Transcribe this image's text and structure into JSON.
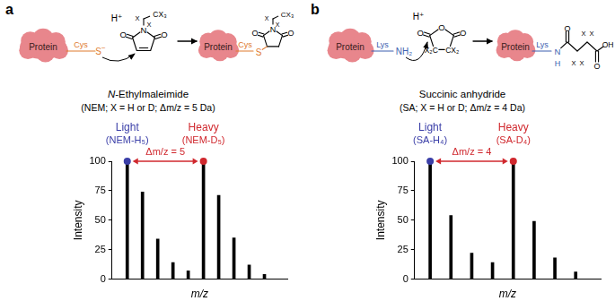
{
  "chart_data": [
    {
      "type": "bar",
      "xlabel": "m/z",
      "ylabel": "Intensity",
      "color": "#000000",
      "xlim": [
        -1,
        10.5
      ],
      "ylim": [
        0,
        100
      ],
      "yticks": [
        0,
        25,
        50,
        75,
        100
      ],
      "grid": false,
      "tick_labels": "y",
      "series": [
        {
          "name": "Light",
          "label": "(NEM-H₅)",
          "color": "#3b3fa8",
          "marker": "circle",
          "x": [
            0,
            1,
            2,
            3,
            4
          ],
          "values": [
            100,
            74,
            34,
            14,
            7
          ]
        },
        {
          "name": "Heavy",
          "label": "(NEM-D₅)",
          "color": "#d0282e",
          "marker": "circle",
          "x": [
            5,
            6,
            7,
            8,
            9
          ],
          "values": [
            100,
            71,
            35,
            12,
            4
          ]
        }
      ],
      "annotations": [
        {
          "text": "Δm/z = 5",
          "from": 0,
          "to": 5,
          "color": "#d0282e"
        }
      ]
    },
    {
      "type": "bar",
      "xlabel": "m/z",
      "ylabel": "Intensity",
      "color": "#000000",
      "xlim": [
        -0.75,
        8.2
      ],
      "ylim": [
        0,
        100
      ],
      "yticks": [
        0,
        25,
        50,
        75,
        100
      ],
      "grid": false,
      "tick_labels": "y",
      "series": [
        {
          "name": "Light",
          "label": "(SA-H₄)",
          "color": "#3b3fa8",
          "marker": "circle",
          "x": [
            0,
            1,
            2,
            3
          ],
          "values": [
            100,
            54,
            22,
            14
          ]
        },
        {
          "name": "Heavy",
          "label": "(SA-D₄)",
          "color": "#d0282e",
          "marker": "circle",
          "x": [
            4,
            5,
            6,
            7
          ],
          "values": [
            100,
            49,
            18,
            6
          ]
        }
      ],
      "annotations": [
        {
          "text": "Δm/z = 4",
          "from": 0,
          "to": 4,
          "color": "#d0282e"
        }
      ]
    }
  ],
  "schemes": [
    {
      "panel": "a",
      "protein": "Protein",
      "residue": "Cys",
      "nucleophile": "S",
      "charge": "−",
      "acid": "H⁺",
      "atoms": {
        "oxygen": "O",
        "nitrogen": "N",
        "methyl": "CX₃",
        "x": "X"
      },
      "name": "N-Ethylmaleimide",
      "note": "(NEM; X = H or D; Δm/z = 5 Da)"
    },
    {
      "panel": "b",
      "protein": "Protein",
      "residue": "Lys",
      "nucleophile": "NH₂",
      "acid": "H⁺",
      "atoms": {
        "oxygen": "O",
        "nitrogen": "N",
        "hydrogen": "H",
        "left_carbon": "X₂C",
        "right_carbon": "CX₂",
        "x": "X",
        "hydroxyl": "OH"
      },
      "name": "Succinic anhydride",
      "note": "(SA; X = H or D; Δm/z = 4 Da)"
    }
  ]
}
